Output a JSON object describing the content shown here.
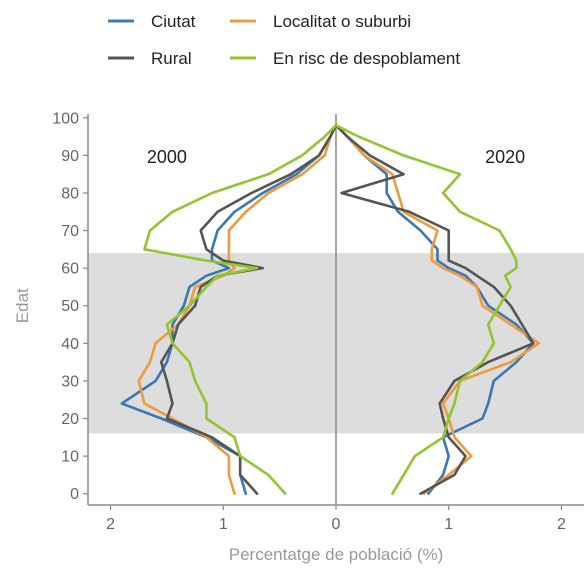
{
  "chart_data": {
    "type": "line",
    "title": "",
    "xlabel": "Percentatge de població (%)",
    "ylabel": "Edat",
    "xlim": [
      -2.2,
      2.2
    ],
    "ylim": [
      -3,
      101
    ],
    "x_ticks": [
      -2,
      -1,
      0,
      1,
      2
    ],
    "x_tick_labels": [
      "2",
      "1",
      "0",
      "1",
      "2"
    ],
    "y_ticks": [
      0,
      10,
      20,
      30,
      40,
      50,
      60,
      70,
      80,
      90,
      100
    ],
    "y_tick_labels": [
      "0",
      "10",
      "20",
      "30",
      "40",
      "50",
      "60",
      "70",
      "80",
      "90",
      "100"
    ],
    "shaded_band": {
      "from_age": 16,
      "to_age": 64,
      "color": "#dddddd"
    },
    "panel_labels": [
      {
        "text": "2000",
        "side": "left"
      },
      {
        "text": "2020",
        "side": "right"
      }
    ],
    "legend_position": "top",
    "legend": [
      {
        "label": "Ciutat",
        "color": "#3a78b4"
      },
      {
        "label": "Localitat o suburbi",
        "color": "#ef9a3c"
      },
      {
        "label": "Rural",
        "color": "#555555"
      },
      {
        "label": "En risc de despoblament",
        "color": "#92c52e"
      }
    ],
    "ages": [
      0,
      5,
      10,
      15,
      20,
      24,
      30,
      35,
      40,
      45,
      50,
      55,
      58,
      60,
      62,
      65,
      70,
      75,
      80,
      85,
      90,
      95,
      98
    ],
    "series": [
      {
        "name": "Ciutat",
        "color": "#3a78b4",
        "y2000": [
          -0.8,
          -0.85,
          -0.85,
          -1.15,
          -1.55,
          -1.9,
          -1.6,
          -1.5,
          -1.45,
          -1.45,
          -1.35,
          -1.3,
          -1.15,
          -0.95,
          -1.1,
          -1.1,
          -1.05,
          -0.9,
          -0.65,
          -0.35,
          -0.15,
          -0.05,
          0.0
        ],
        "y2020": [
          0.82,
          0.95,
          1.0,
          0.95,
          1.3,
          1.35,
          1.4,
          1.6,
          1.75,
          1.6,
          1.35,
          1.25,
          1.15,
          1.0,
          0.9,
          0.9,
          0.75,
          0.55,
          0.45,
          0.45,
          0.25,
          0.1,
          0.0
        ]
      },
      {
        "name": "Localitat o suburbi",
        "color": "#ef9a3c",
        "y2000": [
          -0.9,
          -0.95,
          -0.95,
          -1.15,
          -1.45,
          -1.7,
          -1.75,
          -1.65,
          -1.6,
          -1.4,
          -1.3,
          -1.25,
          -1.0,
          -0.9,
          -0.95,
          -0.95,
          -0.95,
          -0.8,
          -0.6,
          -0.3,
          -0.1,
          -0.05,
          0.0
        ],
        "y2020": [
          0.78,
          1.0,
          1.2,
          1.05,
          1.0,
          0.95,
          1.1,
          1.55,
          1.8,
          1.55,
          1.3,
          1.25,
          1.1,
          0.95,
          0.85,
          0.85,
          0.9,
          0.6,
          0.55,
          0.5,
          0.25,
          0.1,
          0.0
        ]
      },
      {
        "name": "Rural",
        "color": "#555555",
        "y2000": [
          -0.7,
          -0.85,
          -0.85,
          -1.1,
          -1.5,
          -1.45,
          -1.5,
          -1.55,
          -1.45,
          -1.4,
          -1.25,
          -1.2,
          -1.05,
          -0.65,
          -1.0,
          -1.15,
          -1.2,
          -1.05,
          -0.75,
          -0.4,
          -0.15,
          -0.05,
          0.0
        ],
        "y2020": [
          0.75,
          1.05,
          1.15,
          1.0,
          0.95,
          0.92,
          1.05,
          1.35,
          1.75,
          1.65,
          1.55,
          1.4,
          1.25,
          1.15,
          1.0,
          1.0,
          1.0,
          0.65,
          0.05,
          0.6,
          0.3,
          0.1,
          0.0
        ]
      },
      {
        "name": "En risc de despoblament",
        "color": "#92c52e",
        "y2000": [
          -0.45,
          -0.6,
          -0.85,
          -0.9,
          -1.15,
          -1.15,
          -1.25,
          -1.3,
          -1.45,
          -1.5,
          -1.3,
          -1.15,
          -1.05,
          -0.7,
          -1.15,
          -1.7,
          -1.65,
          -1.45,
          -1.1,
          -0.6,
          -0.3,
          -0.1,
          0.0
        ],
        "y2020": [
          0.5,
          0.6,
          0.7,
          0.95,
          1.0,
          1.05,
          1.1,
          1.3,
          1.4,
          1.35,
          1.45,
          1.55,
          1.5,
          1.6,
          1.6,
          1.55,
          1.45,
          1.1,
          0.95,
          1.1,
          0.6,
          0.2,
          0.0
        ]
      }
    ]
  }
}
